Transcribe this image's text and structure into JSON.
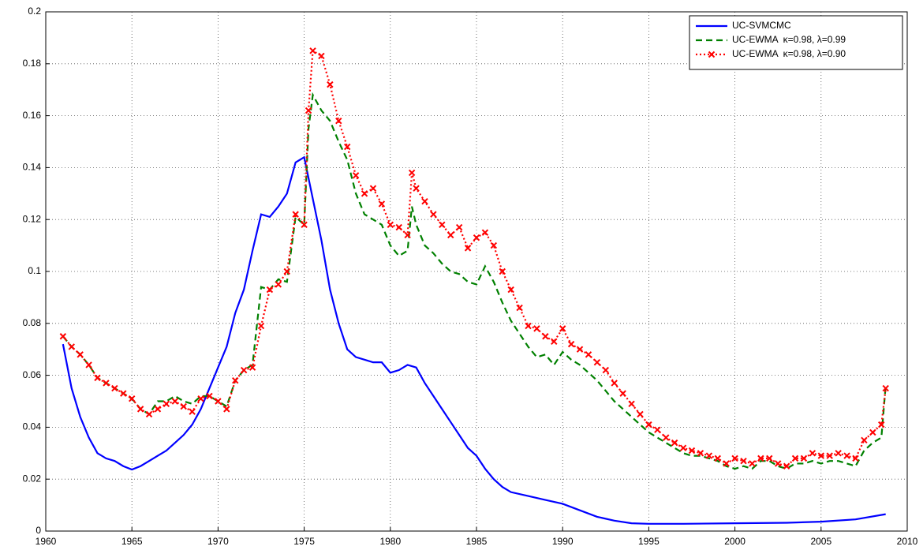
{
  "chart_data": {
    "type": "line",
    "grid": true,
    "legend": "upper right",
    "xlim": [
      1960,
      2010
    ],
    "xticks": [
      1960,
      1965,
      1970,
      1975,
      1980,
      1985,
      1990,
      1995,
      2000,
      2005,
      2010
    ],
    "ylim": [
      0,
      0.2
    ],
    "yticks": [
      0,
      0.02,
      0.04,
      0.06,
      0.08,
      0.1,
      0.12,
      0.14,
      0.16,
      0.18,
      0.2
    ],
    "series": [
      {
        "name": "UC-SVMCMC",
        "color": "#0000ff",
        "style": "solid",
        "marker": null,
        "x": [
          1961,
          1961.5,
          1962,
          1962.5,
          1963,
          1963.5,
          1964,
          1964.5,
          1965,
          1965.5,
          1966,
          1966.5,
          1967,
          1967.5,
          1968,
          1968.5,
          1969,
          1969.5,
          1970,
          1970.5,
          1971,
          1971.5,
          1972,
          1972.5,
          1973,
          1973.5,
          1974,
          1974.5,
          1975,
          1975.5,
          1976,
          1976.5,
          1977,
          1977.5,
          1978,
          1978.5,
          1979,
          1979.5,
          1980,
          1980.5,
          1981,
          1981.5,
          1982,
          1982.5,
          1983,
          1983.5,
          1984,
          1984.5,
          1985,
          1985.5,
          1986,
          1986.5,
          1987,
          1988,
          1989,
          1990,
          1991,
          1992,
          1993,
          1994,
          1995,
          1997,
          2000,
          2003,
          2005,
          2007,
          2008.75
        ],
        "values": [
          0.072,
          0.055,
          0.044,
          0.036,
          0.03,
          0.028,
          0.027,
          0.025,
          0.0237,
          0.025,
          0.027,
          0.029,
          0.031,
          0.034,
          0.037,
          0.041,
          0.047,
          0.055,
          0.063,
          0.071,
          0.084,
          0.093,
          0.108,
          0.122,
          0.121,
          0.125,
          0.13,
          0.142,
          0.144,
          0.128,
          0.112,
          0.093,
          0.08,
          0.07,
          0.067,
          0.066,
          0.065,
          0.065,
          0.061,
          0.062,
          0.064,
          0.063,
          0.057,
          0.052,
          0.047,
          0.042,
          0.037,
          0.032,
          0.029,
          0.024,
          0.02,
          0.017,
          0.015,
          0.0135,
          0.012,
          0.0105,
          0.008,
          0.0055,
          0.004,
          0.003,
          0.0028,
          0.0028,
          0.003,
          0.0032,
          0.0036,
          0.0045,
          0.0065
        ]
      },
      {
        "name": "UC-EWMA  κ=0.98, λ=0.99",
        "color": "#008000",
        "style": "dashed",
        "marker": null,
        "x": [
          1961,
          1961.5,
          1962,
          1962.5,
          1963,
          1963.5,
          1964,
          1964.5,
          1965,
          1965.5,
          1966,
          1966.5,
          1967,
          1967.5,
          1968,
          1968.5,
          1969,
          1969.5,
          1970,
          1970.5,
          1971,
          1971.5,
          1972,
          1972.5,
          1973,
          1973.5,
          1974,
          1974.5,
          1975,
          1975.25,
          1975.5,
          1976,
          1976.5,
          1977,
          1977.5,
          1978,
          1978.5,
          1979,
          1979.5,
          1980,
          1980.5,
          1981,
          1981.25,
          1981.5,
          1982,
          1982.5,
          1983,
          1983.5,
          1984,
          1984.5,
          1985,
          1985.5,
          1986,
          1986.5,
          1987,
          1987.5,
          1988,
          1988.5,
          1989,
          1989.5,
          1990,
          1990.5,
          1991,
          1991.5,
          1992,
          1992.5,
          1993,
          1993.5,
          1994,
          1994.5,
          1995,
          1995.5,
          1996,
          1996.5,
          1997,
          1997.5,
          1998,
          1998.5,
          1999,
          1999.5,
          2000,
          2000.5,
          2001,
          2001.5,
          2002,
          2002.5,
          2003,
          2003.5,
          2004,
          2004.5,
          2005,
          2005.5,
          2006,
          2006.5,
          2007,
          2007.5,
          2008,
          2008.5,
          2008.75
        ],
        "values": [
          0.075,
          0.071,
          0.068,
          0.064,
          0.059,
          0.057,
          0.055,
          0.053,
          0.051,
          0.047,
          0.045,
          0.05,
          0.05,
          0.052,
          0.05,
          0.049,
          0.052,
          0.052,
          0.05,
          0.048,
          0.058,
          0.062,
          0.064,
          0.094,
          0.093,
          0.097,
          0.096,
          0.121,
          0.118,
          0.155,
          0.168,
          0.162,
          0.158,
          0.15,
          0.143,
          0.13,
          0.122,
          0.12,
          0.118,
          0.11,
          0.106,
          0.108,
          0.125,
          0.118,
          0.11,
          0.107,
          0.103,
          0.1,
          0.099,
          0.096,
          0.095,
          0.102,
          0.096,
          0.088,
          0.081,
          0.076,
          0.071,
          0.067,
          0.068,
          0.064,
          0.069,
          0.066,
          0.064,
          0.061,
          0.058,
          0.054,
          0.05,
          0.047,
          0.044,
          0.041,
          0.038,
          0.036,
          0.034,
          0.032,
          0.03,
          0.029,
          0.029,
          0.028,
          0.027,
          0.025,
          0.024,
          0.025,
          0.024,
          0.027,
          0.027,
          0.025,
          0.024,
          0.026,
          0.026,
          0.027,
          0.026,
          0.027,
          0.027,
          0.026,
          0.025,
          0.031,
          0.034,
          0.036,
          0.056
        ]
      },
      {
        "name": "UC-EWMA  κ=0.98, λ=0.90",
        "color": "#ff0000",
        "style": "dotted",
        "marker": "x",
        "x": [
          1961,
          1961.5,
          1962,
          1962.5,
          1963,
          1963.5,
          1964,
          1964.5,
          1965,
          1965.5,
          1966,
          1966.5,
          1967,
          1967.5,
          1968,
          1968.5,
          1969,
          1969.5,
          1970,
          1970.5,
          1971,
          1971.5,
          1972,
          1972.5,
          1973,
          1973.5,
          1974,
          1974.5,
          1975,
          1975.25,
          1975.5,
          1976,
          1976.5,
          1977,
          1977.5,
          1978,
          1978.5,
          1979,
          1979.5,
          1980,
          1980.5,
          1981,
          1981.25,
          1981.5,
          1982,
          1982.5,
          1983,
          1983.5,
          1984,
          1984.5,
          1985,
          1985.5,
          1986,
          1986.5,
          1987,
          1987.5,
          1988,
          1988.5,
          1989,
          1989.5,
          1990,
          1990.5,
          1991,
          1991.5,
          1992,
          1992.5,
          1993,
          1993.5,
          1994,
          1994.5,
          1995,
          1995.5,
          1996,
          1996.5,
          1997,
          1997.5,
          1998,
          1998.5,
          1999,
          1999.5,
          2000,
          2000.5,
          2001,
          2001.5,
          2002,
          2002.5,
          2003,
          2003.5,
          2004,
          2004.5,
          2005,
          2005.5,
          2006,
          2006.5,
          2007,
          2007.5,
          2008,
          2008.5,
          2008.75
        ],
        "values": [
          0.075,
          0.071,
          0.068,
          0.064,
          0.059,
          0.057,
          0.055,
          0.053,
          0.051,
          0.047,
          0.045,
          0.047,
          0.049,
          0.05,
          0.048,
          0.046,
          0.051,
          0.052,
          0.05,
          0.047,
          0.058,
          0.062,
          0.063,
          0.079,
          0.093,
          0.095,
          0.1,
          0.122,
          0.118,
          0.162,
          0.185,
          0.183,
          0.172,
          0.158,
          0.148,
          0.137,
          0.13,
          0.132,
          0.126,
          0.118,
          0.117,
          0.114,
          0.138,
          0.132,
          0.127,
          0.122,
          0.118,
          0.114,
          0.117,
          0.109,
          0.113,
          0.115,
          0.11,
          0.1,
          0.093,
          0.086,
          0.079,
          0.078,
          0.075,
          0.073,
          0.078,
          0.072,
          0.07,
          0.068,
          0.065,
          0.062,
          0.057,
          0.053,
          0.049,
          0.045,
          0.041,
          0.039,
          0.036,
          0.034,
          0.032,
          0.031,
          0.03,
          0.029,
          0.028,
          0.026,
          0.028,
          0.027,
          0.026,
          0.028,
          0.028,
          0.026,
          0.025,
          0.028,
          0.028,
          0.03,
          0.029,
          0.029,
          0.03,
          0.029,
          0.028,
          0.035,
          0.038,
          0.041,
          0.055
        ]
      }
    ]
  }
}
